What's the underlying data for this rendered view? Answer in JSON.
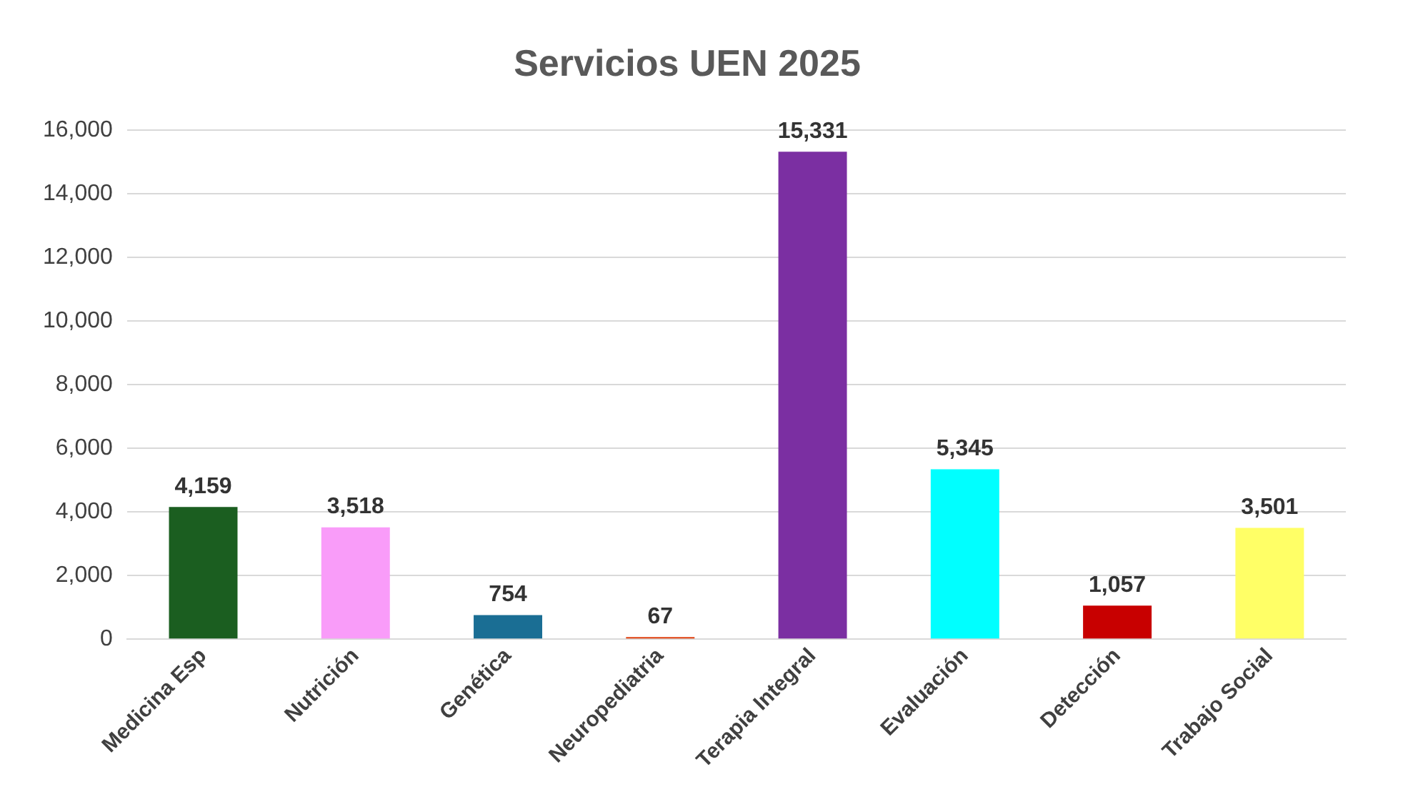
{
  "chart_data": {
    "type": "bar",
    "title": "Servicios UEN 2025",
    "categories": [
      "Medicina Esp",
      "Nutrición",
      "Genética",
      "Neuropediatria",
      "Terapia Integral",
      "Evaluación",
      "Detección",
      "Trabajo Social"
    ],
    "values": [
      4159,
      3518,
      754,
      67,
      15331,
      5345,
      1057,
      3501
    ],
    "value_labels": [
      "4,159",
      "3,518",
      "754",
      "67",
      "15,331",
      "5,345",
      "1,057",
      "3,501"
    ],
    "colors": [
      "#1b5e20",
      "#f99cf9",
      "#1a6e94",
      "#e0400f",
      "#7b2fa2",
      "#00ffff",
      "#c80000",
      "#ffff66"
    ],
    "ylim": [
      0,
      16000
    ],
    "yticks": [
      0,
      {
        "value": 2000,
        "label": "2,000"
      },
      {
        "value": 4000,
        "label": "4,000"
      },
      {
        "value": 6000,
        "label": "6,000"
      },
      {
        "value": 8000,
        "label": "8,000"
      },
      {
        "value": 10000,
        "label": "10,000"
      },
      {
        "value": 12000,
        "label": "12,000"
      },
      {
        "value": 14000,
        "label": "14,000"
      },
      {
        "value": 16000,
        "label": "16,000"
      }
    ],
    "grid": "y",
    "legend": false
  }
}
